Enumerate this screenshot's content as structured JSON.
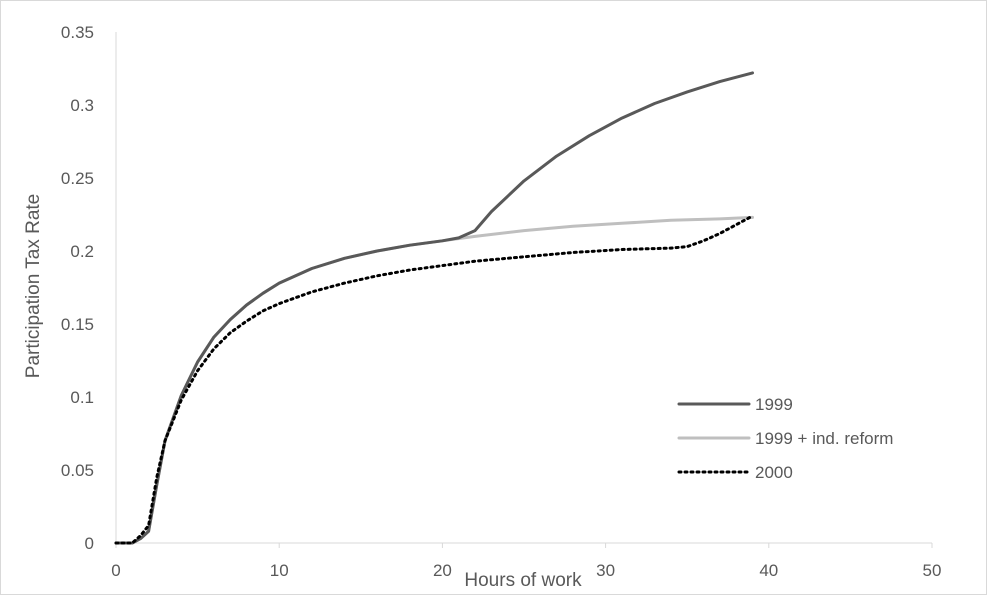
{
  "chart_data": {
    "type": "line",
    "title": "",
    "xlabel": "Hours of work",
    "ylabel": "Participation Tax Rate",
    "xlim": [
      0,
      50
    ],
    "ylim": [
      0,
      0.35
    ],
    "x_ticks": [
      "0",
      "10",
      "20",
      "30",
      "40",
      "50"
    ],
    "y_ticks": [
      "0",
      "0.05",
      "0.1",
      "0.15",
      "0.2",
      "0.25",
      "0.3",
      "0.35"
    ],
    "grid": false,
    "legend_position": "right",
    "series": [
      {
        "name": "1999",
        "color": "#595959",
        "style": "solid",
        "x": [
          0,
          1,
          1.5,
          2,
          2.5,
          3,
          4,
          5,
          6,
          7,
          8,
          9,
          10,
          12,
          14,
          16,
          18,
          20,
          21,
          22,
          23,
          25,
          27,
          29,
          31,
          33,
          35,
          37,
          39
        ],
        "y": [
          0,
          0,
          0.003,
          0.008,
          0.04,
          0.07,
          0.101,
          0.124,
          0.141,
          0.153,
          0.163,
          0.171,
          0.178,
          0.188,
          0.195,
          0.2,
          0.204,
          0.207,
          0.209,
          0.214,
          0.227,
          0.248,
          0.265,
          0.279,
          0.291,
          0.301,
          0.309,
          0.316,
          0.322
        ]
      },
      {
        "name": "1999 + ind. reform",
        "color": "#bfbfbf",
        "style": "solid",
        "x": [
          0,
          1,
          1.5,
          2,
          2.5,
          3,
          4,
          5,
          6,
          7,
          8,
          9,
          10,
          12,
          14,
          16,
          18,
          20,
          22,
          25,
          28,
          31,
          34,
          37,
          39
        ],
        "y": [
          0,
          0,
          0.003,
          0.008,
          0.04,
          0.07,
          0.101,
          0.124,
          0.141,
          0.153,
          0.163,
          0.171,
          0.178,
          0.188,
          0.195,
          0.2,
          0.204,
          0.207,
          0.21,
          0.214,
          0.217,
          0.219,
          0.221,
          0.222,
          0.223
        ]
      },
      {
        "name": "2000",
        "color": "#000000",
        "style": "dotted",
        "x": [
          0,
          1,
          1.5,
          2,
          2.5,
          3,
          4,
          5,
          6,
          7,
          8,
          9,
          10,
          12,
          14,
          16,
          18,
          20,
          22,
          25,
          28,
          31,
          34,
          35,
          36,
          37,
          38,
          39
        ],
        "y": [
          0,
          0,
          0.005,
          0.012,
          0.045,
          0.07,
          0.098,
          0.118,
          0.133,
          0.144,
          0.152,
          0.159,
          0.164,
          0.172,
          0.178,
          0.183,
          0.187,
          0.19,
          0.193,
          0.196,
          0.199,
          0.201,
          0.202,
          0.203,
          0.207,
          0.212,
          0.218,
          0.224
        ]
      }
    ]
  }
}
